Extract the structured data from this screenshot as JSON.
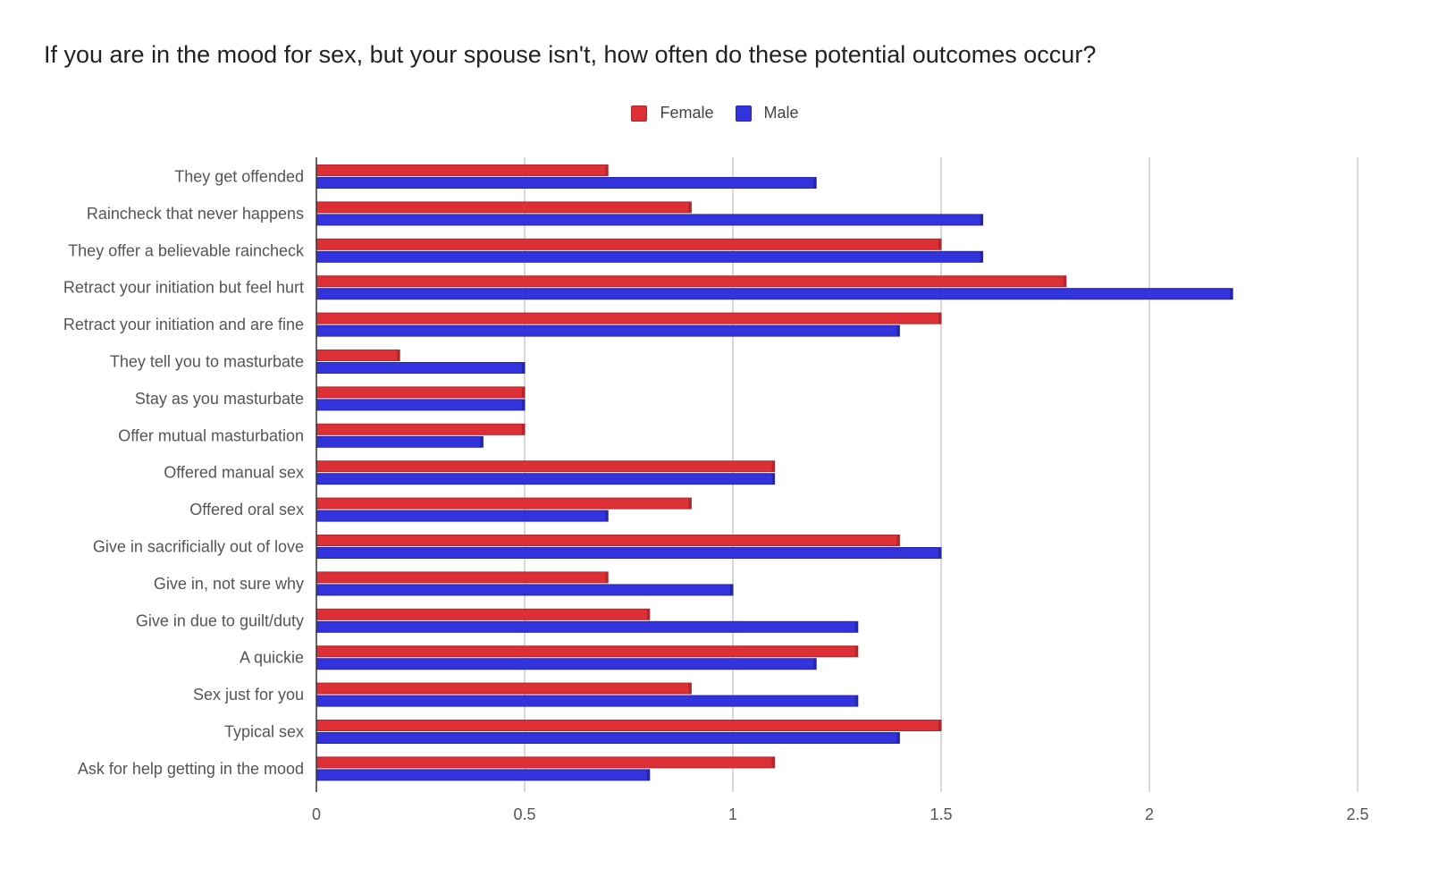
{
  "chart_data": {
    "type": "bar",
    "orientation": "horizontal",
    "title": "If you are in the mood for sex, but your spouse isn't, how often do these potential outcomes occur?",
    "legend_position": "top",
    "grid": true,
    "xlim": [
      0,
      2.5
    ],
    "ticks": [
      "0",
      "0.5",
      "1",
      "1.5",
      "2",
      "2.5"
    ],
    "tick_values": [
      0,
      0.5,
      1,
      1.5,
      2,
      2.5
    ],
    "categories": [
      "They get offended",
      "Raincheck that never happens",
      "They offer a believable raincheck",
      "Retract your initiation but feel hurt",
      "Retract your initiation and are fine",
      "They tell you to masturbate",
      "Stay as you masturbate",
      "Offer mutual masturbation",
      "Offered manual sex",
      "Offered oral sex",
      "Give in sacrificially out of love",
      "Give in, not sure why",
      "Give in due to guilt/duty",
      "A quickie",
      "Sex just for you",
      "Typical sex",
      "Ask for help getting in the mood"
    ],
    "series": [
      {
        "name": "Female",
        "color": "#dd3036",
        "edge": "#b3272c",
        "values": [
          0.7,
          0.9,
          1.5,
          1.8,
          1.5,
          0.2,
          0.5,
          0.5,
          1.1,
          0.9,
          1.4,
          0.7,
          0.8,
          1.3,
          0.9,
          1.5,
          1.1
        ]
      },
      {
        "name": "Male",
        "color": "#3333dd",
        "edge": "#2626a8",
        "values": [
          1.2,
          1.6,
          1.6,
          2.2,
          1.4,
          0.5,
          0.5,
          0.4,
          1.1,
          0.7,
          1.5,
          1.0,
          1.3,
          1.2,
          1.3,
          1.4,
          0.8
        ]
      }
    ]
  }
}
